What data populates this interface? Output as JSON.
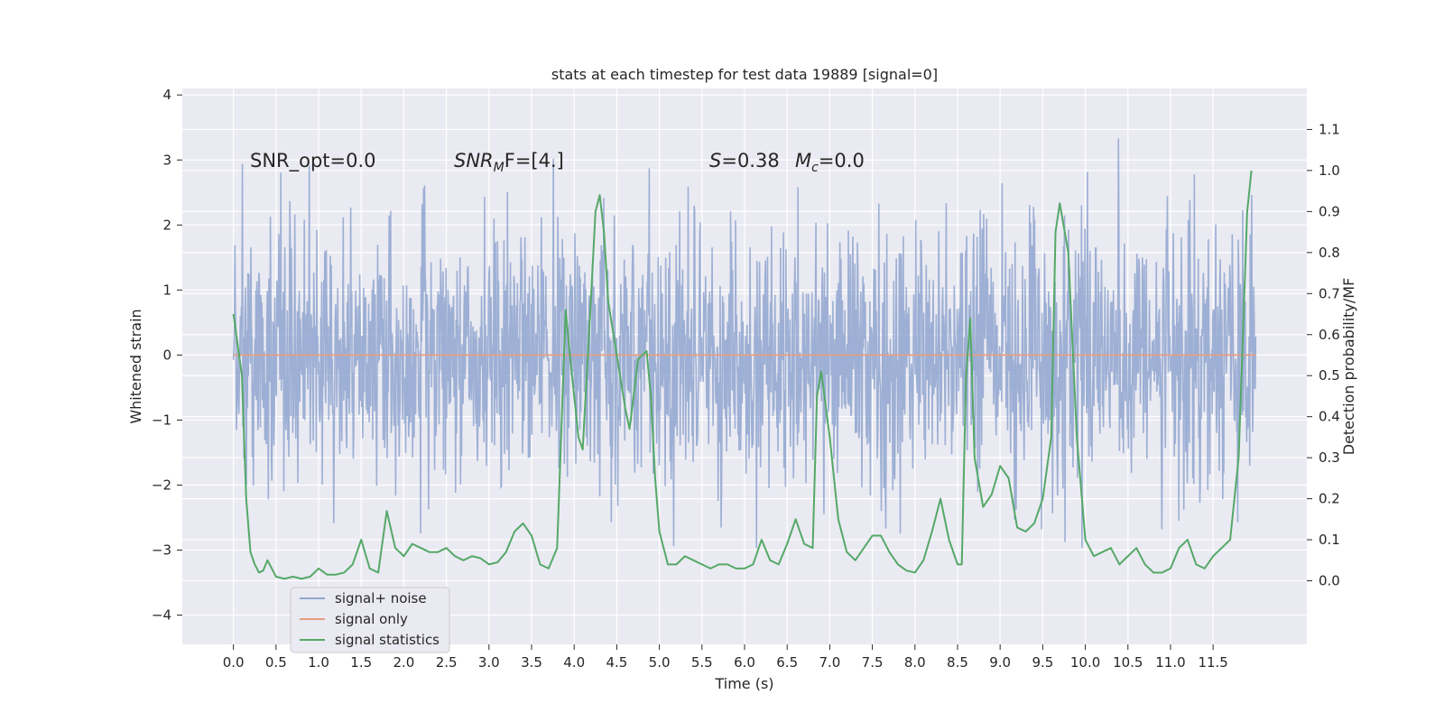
{
  "chart_data": {
    "type": "line",
    "title": "stats at each timestep for test data 19889 [signal=0]",
    "xlabel": "Time (s)",
    "ylabel": "Whitened strain",
    "y2label": "Detection probability/MF",
    "xlim": [
      -0.6,
      12.6
    ],
    "ylim": [
      -4.45,
      4.1
    ],
    "y2lim": [
      -0.155,
      1.2
    ],
    "x_ticks": [
      "0.0",
      "0.5",
      "1.0",
      "1.5",
      "2.0",
      "2.5",
      "3.0",
      "3.5",
      "4.0",
      "4.5",
      "5.0",
      "5.5",
      "6.0",
      "6.5",
      "7.0",
      "7.5",
      "8.0",
      "8.5",
      "9.0",
      "9.5",
      "10.0",
      "10.5",
      "11.0",
      "11.5"
    ],
    "y_ticks": [
      4,
      3,
      2,
      1,
      0,
      -1,
      -2,
      -3,
      -4
    ],
    "y_tick_labels": [
      "4",
      "3",
      "2",
      "1",
      "0",
      "−1",
      "−2",
      "−3",
      "−4"
    ],
    "y2_ticks": [
      "1.1",
      "1.0",
      "0.9",
      "0.8",
      "0.7",
      "0.6",
      "0.5",
      "0.4",
      "0.3",
      "0.2",
      "0.1",
      "0.0"
    ],
    "grid": true,
    "legend_position": "lower-left",
    "annotations": {
      "snr_opt": "SNR_opt=0.0",
      "snr_mf_main": "SNR",
      "snr_mf_sub": "M",
      "snr_mf_rest": "F=[4.]",
      "s_sym": "S",
      "s_val": "=0.38",
      "mc_sym": "M",
      "mc_sub": "c",
      "mc_val": "=0.0"
    },
    "series": [
      {
        "name": "signal+ noise",
        "color": "#8fa5cf",
        "axis": "left",
        "x_range": [
          0.0,
          12.0
        ],
        "noise_sigma": 1.0,
        "samples": 2048
      },
      {
        "name": "signal only",
        "color": "#e59f83",
        "axis": "left",
        "x": [
          0.0,
          12.0
        ],
        "y": [
          0.0,
          0.0
        ]
      },
      {
        "name": "signal statistics",
        "color": "#55a868",
        "axis": "right",
        "x": [
          0.0,
          0.1,
          0.15,
          0.2,
          0.25,
          0.3,
          0.35,
          0.4,
          0.5,
          0.6,
          0.7,
          0.8,
          0.9,
          1.0,
          1.1,
          1.2,
          1.3,
          1.4,
          1.5,
          1.6,
          1.7,
          1.8,
          1.9,
          2.0,
          2.1,
          2.2,
          2.3,
          2.4,
          2.5,
          2.6,
          2.7,
          2.8,
          2.9,
          3.0,
          3.1,
          3.2,
          3.3,
          3.4,
          3.5,
          3.6,
          3.7,
          3.8,
          3.9,
          3.95,
          4.05,
          4.1,
          4.2,
          4.25,
          4.3,
          4.35,
          4.4,
          4.5,
          4.6,
          4.65,
          4.75,
          4.85,
          4.9,
          4.95,
          5.0,
          5.1,
          5.2,
          5.3,
          5.4,
          5.5,
          5.6,
          5.7,
          5.8,
          5.9,
          6.0,
          6.1,
          6.2,
          6.3,
          6.4,
          6.5,
          6.6,
          6.7,
          6.8,
          6.85,
          6.9,
          7.0,
          7.1,
          7.2,
          7.3,
          7.4,
          7.5,
          7.6,
          7.7,
          7.8,
          7.9,
          8.0,
          8.1,
          8.2,
          8.3,
          8.4,
          8.5,
          8.55,
          8.6,
          8.65,
          8.7,
          8.8,
          8.9,
          9.0,
          9.1,
          9.2,
          9.3,
          9.4,
          9.5,
          9.6,
          9.65,
          9.7,
          9.8,
          9.9,
          10.0,
          10.1,
          10.2,
          10.3,
          10.4,
          10.5,
          10.6,
          10.7,
          10.8,
          10.9,
          11.0,
          11.1,
          11.2,
          11.3,
          11.4,
          11.5,
          11.6,
          11.7,
          11.8,
          11.9,
          11.95
        ],
        "y": [
          0.65,
          0.5,
          0.2,
          0.07,
          0.04,
          0.02,
          0.025,
          0.05,
          0.01,
          0.005,
          0.01,
          0.005,
          0.01,
          0.03,
          0.015,
          0.015,
          0.02,
          0.04,
          0.1,
          0.03,
          0.02,
          0.17,
          0.08,
          0.06,
          0.09,
          0.08,
          0.07,
          0.07,
          0.08,
          0.06,
          0.05,
          0.06,
          0.055,
          0.04,
          0.045,
          0.07,
          0.12,
          0.14,
          0.11,
          0.04,
          0.03,
          0.08,
          0.66,
          0.55,
          0.35,
          0.32,
          0.7,
          0.9,
          0.94,
          0.85,
          0.68,
          0.55,
          0.42,
          0.37,
          0.54,
          0.56,
          0.45,
          0.25,
          0.12,
          0.04,
          0.04,
          0.06,
          0.05,
          0.04,
          0.03,
          0.04,
          0.04,
          0.03,
          0.03,
          0.04,
          0.1,
          0.05,
          0.04,
          0.09,
          0.15,
          0.09,
          0.08,
          0.45,
          0.51,
          0.35,
          0.15,
          0.07,
          0.05,
          0.08,
          0.11,
          0.11,
          0.07,
          0.04,
          0.025,
          0.02,
          0.05,
          0.12,
          0.2,
          0.1,
          0.04,
          0.04,
          0.5,
          0.64,
          0.3,
          0.18,
          0.21,
          0.28,
          0.25,
          0.13,
          0.12,
          0.14,
          0.2,
          0.35,
          0.85,
          0.92,
          0.8,
          0.35,
          0.1,
          0.06,
          0.07,
          0.08,
          0.04,
          0.06,
          0.08,
          0.04,
          0.02,
          0.02,
          0.03,
          0.08,
          0.1,
          0.04,
          0.03,
          0.06,
          0.08,
          0.1,
          0.3,
          0.9,
          1.0
        ]
      }
    ]
  }
}
